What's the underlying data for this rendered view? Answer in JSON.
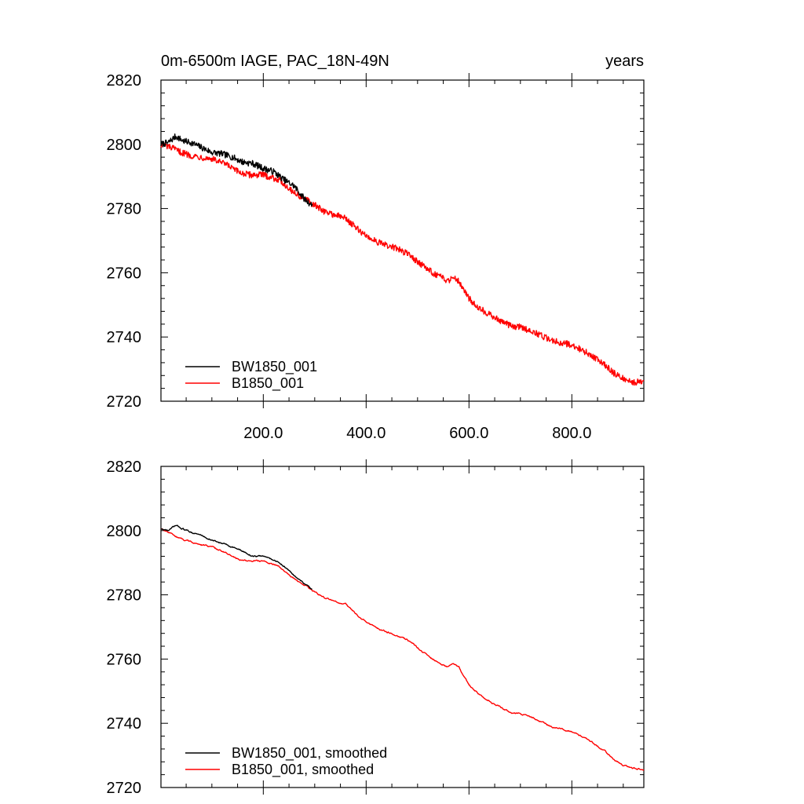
{
  "title_left": "0m-6500m IAGE, PAC_18N-49N",
  "title_right": "years",
  "chart_data": [
    {
      "type": "line",
      "xlim": [
        1,
        940
      ],
      "ylim": [
        2720,
        2820
      ],
      "yticks": [
        2720,
        2740,
        2760,
        2780,
        2800,
        2820
      ],
      "xticks": [
        200,
        400,
        600,
        800
      ],
      "xtick_labels": [
        "200.0",
        "400.0",
        "600.0",
        "800.0"
      ],
      "legend_position": "bottom-left",
      "series": [
        {
          "name": "BW1850_001",
          "color": "#000000",
          "noise": 1.0,
          "smoothed": false,
          "x": [
            1,
            15,
            30,
            45,
            60,
            80,
            100,
            120,
            140,
            160,
            180,
            200,
            220,
            240,
            260,
            280,
            295
          ],
          "y": [
            2800,
            2800.5,
            2802.5,
            2801,
            2800.5,
            2799,
            2797.5,
            2797,
            2796,
            2794.5,
            2794,
            2792.5,
            2791.5,
            2789,
            2787,
            2783,
            2781
          ]
        },
        {
          "name": "B1850_001",
          "color": "#ff0000",
          "noise": 1.0,
          "smoothed": false,
          "x": [
            1,
            20,
            40,
            60,
            80,
            100,
            130,
            150,
            170,
            200,
            230,
            260,
            290,
            320,
            340,
            360,
            380,
            400,
            430,
            460,
            480,
            500,
            520,
            540,
            560,
            570,
            580,
            600,
            620,
            650,
            680,
            700,
            720,
            760,
            800,
            830,
            860,
            880,
            900,
            920,
            940
          ],
          "y": [
            2800,
            2799,
            2797.5,
            2796.5,
            2796,
            2795.5,
            2793.5,
            2791.5,
            2790.5,
            2790.5,
            2789,
            2785,
            2782,
            2779,
            2778,
            2777,
            2774,
            2771.5,
            2769,
            2767.5,
            2766,
            2763.5,
            2761,
            2759,
            2757.5,
            2759,
            2757.5,
            2752,
            2749,
            2746,
            2743.5,
            2743,
            2742,
            2739,
            2737.5,
            2735,
            2732,
            2729,
            2727,
            2726,
            2726
          ]
        }
      ]
    },
    {
      "type": "line",
      "xlim": [
        1,
        940
      ],
      "ylim": [
        2720,
        2820
      ],
      "yticks": [
        2720,
        2740,
        2760,
        2780,
        2800,
        2820
      ],
      "xticks": [
        200,
        400,
        600,
        800
      ],
      "xtick_labels": [],
      "legend_position": "bottom-left",
      "series": [
        {
          "name": "BW1850_001, smoothed",
          "color": "#000000",
          "noise": 0.35,
          "smoothed": true,
          "x": [
            1,
            15,
            30,
            45,
            60,
            80,
            100,
            120,
            140,
            160,
            180,
            200,
            220,
            240,
            260,
            280,
            295
          ],
          "y": [
            2800.5,
            2800,
            2801.5,
            2800.5,
            2799.5,
            2798.5,
            2797,
            2796,
            2795,
            2793.5,
            2792,
            2792,
            2791,
            2789,
            2786,
            2783.5,
            2781.5
          ]
        },
        {
          "name": "B1850_001, smoothed",
          "color": "#ff0000",
          "noise": 0.35,
          "smoothed": true,
          "x": [
            1,
            20,
            40,
            60,
            80,
            100,
            130,
            150,
            170,
            200,
            230,
            260,
            290,
            320,
            340,
            360,
            380,
            400,
            430,
            460,
            480,
            500,
            520,
            540,
            560,
            570,
            580,
            600,
            620,
            650,
            680,
            700,
            720,
            760,
            800,
            830,
            860,
            880,
            900,
            920,
            940
          ],
          "y": [
            2800.5,
            2799,
            2797.5,
            2796.5,
            2795.5,
            2795,
            2793,
            2791,
            2790.5,
            2790.5,
            2789,
            2785,
            2782,
            2779,
            2778,
            2777,
            2774,
            2771.5,
            2769,
            2767.5,
            2766,
            2763.5,
            2761,
            2759,
            2757.5,
            2758.5,
            2757.5,
            2752,
            2749,
            2746,
            2743.5,
            2743,
            2742,
            2739,
            2737.5,
            2735,
            2732,
            2729,
            2727,
            2726,
            2725.5
          ]
        }
      ]
    }
  ]
}
